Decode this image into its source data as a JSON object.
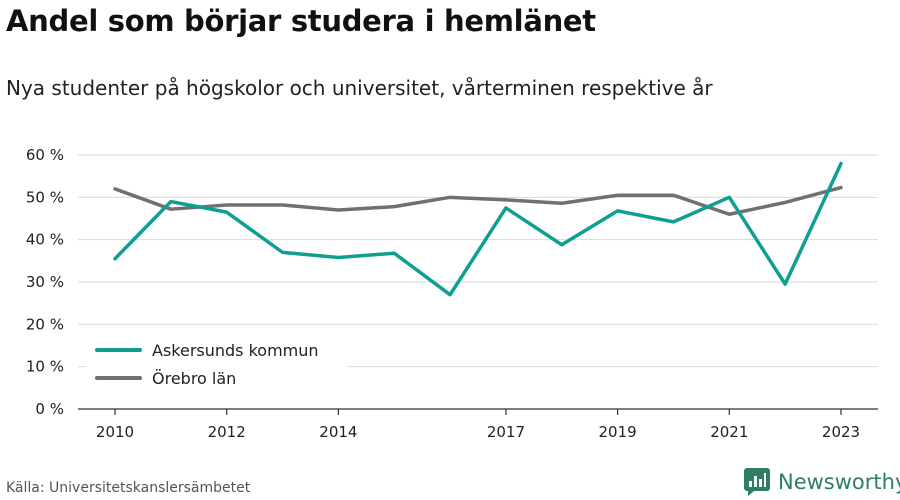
{
  "header": {
    "title": "Andel som börjar studera i hemlänet",
    "subtitle": "Nya studenter på högskolor och universitet, vårterminen respektive år"
  },
  "footer": {
    "source": "Källa: Universitetskanslersämbetet",
    "brand": "Newsworthy",
    "brand_icon": "newsworthy-logo-icon"
  },
  "colors": {
    "askersund": "#0f9f92",
    "orebro": "#707070",
    "grid": "#d9d9d9",
    "axis": "#333333",
    "brand": "#2e7d65"
  },
  "chart_data": {
    "type": "line",
    "title": "Andel som börjar studera i hemlänet",
    "subtitle": "Nya studenter på högskolor och universitet, vårterminen respektive år",
    "x": [
      2010,
      2011,
      2012,
      2013,
      2014,
      2015,
      2016,
      2017,
      2018,
      2019,
      2020,
      2021,
      2022,
      2023
    ],
    "x_ticks": [
      2010,
      2012,
      2014,
      2017,
      2019,
      2021,
      2023
    ],
    "y_ticks": [
      "0 %",
      "10 %",
      "20 %",
      "30 %",
      "40 %",
      "50 %",
      "60 %"
    ],
    "ylim": [
      0,
      60
    ],
    "grid": true,
    "legend_position": "bottom-left",
    "series": [
      {
        "name": "Askersunds kommun",
        "color": "#0f9f92",
        "values": [
          35.5,
          49,
          46.5,
          37,
          35.8,
          36.8,
          27,
          47.5,
          38.8,
          46.8,
          44.2,
          50,
          29.5,
          58
        ]
      },
      {
        "name": "Örebro län",
        "color": "#707070",
        "values": [
          52,
          47.2,
          48.2,
          48.2,
          47,
          47.8,
          50,
          49.4,
          48.6,
          50.5,
          50.5,
          46,
          48.8,
          52.3
        ]
      }
    ]
  }
}
